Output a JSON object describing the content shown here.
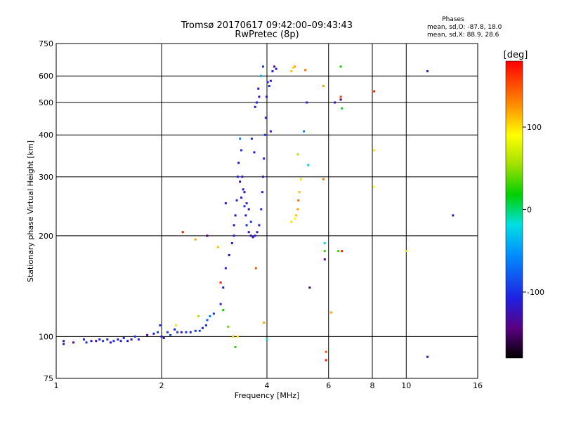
{
  "header": {
    "title_line1": "Tromsø 20170617 09:42:00–09:43:43",
    "title_line2": "RwPretec (8p)",
    "phase_heading": "Phases",
    "phase_o": "mean, sd,O: -87.8, 18.0",
    "phase_x": "mean, sd,X:  88.9, 28.6"
  },
  "chart_data": {
    "type": "scatter",
    "title": "Tromsø 20170617 09:42:00–09:43:43",
    "subtitle": "RwPretec (8p)",
    "xlabel": "Frequency [MHz]",
    "ylabel": "Stationary phase Virtual Height [km]",
    "x_scale": "log2",
    "y_scale": "log",
    "xlim": [
      1,
      16
    ],
    "ylim": [
      75,
      750
    ],
    "x_ticks": [
      1,
      2,
      4,
      6,
      8,
      10,
      16
    ],
    "y_ticks": [
      75,
      100,
      200,
      300,
      400,
      500,
      600,
      750
    ],
    "x_grid": [
      2,
      4,
      6,
      8,
      10
    ],
    "y_grid": [
      100,
      200,
      300,
      400,
      500,
      600
    ],
    "colorbar": {
      "label": "[deg]",
      "range": [
        -180,
        180
      ],
      "ticks": [
        100,
        0,
        -100
      ]
    },
    "points": [
      {
        "x": 1.05,
        "y": 97,
        "c": -110
      },
      {
        "x": 1.05,
        "y": 95,
        "c": -120
      },
      {
        "x": 1.12,
        "y": 96,
        "c": -130
      },
      {
        "x": 1.2,
        "y": 98,
        "c": -110
      },
      {
        "x": 1.22,
        "y": 96,
        "c": -100
      },
      {
        "x": 1.26,
        "y": 97,
        "c": -120
      },
      {
        "x": 1.3,
        "y": 97,
        "c": -130
      },
      {
        "x": 1.33,
        "y": 98,
        "c": -110
      },
      {
        "x": 1.36,
        "y": 97,
        "c": -90
      },
      {
        "x": 1.4,
        "y": 98,
        "c": -110
      },
      {
        "x": 1.43,
        "y": 96,
        "c": -120
      },
      {
        "x": 1.46,
        "y": 97,
        "c": -100
      },
      {
        "x": 1.5,
        "y": 98,
        "c": -110
      },
      {
        "x": 1.53,
        "y": 97,
        "c": -120
      },
      {
        "x": 1.56,
        "y": 99,
        "c": -100
      },
      {
        "x": 1.6,
        "y": 97,
        "c": -110
      },
      {
        "x": 1.64,
        "y": 98,
        "c": -130
      },
      {
        "x": 1.68,
        "y": 100,
        "c": -100
      },
      {
        "x": 1.72,
        "y": 98,
        "c": -110
      },
      {
        "x": 1.82,
        "y": 101,
        "c": -140
      },
      {
        "x": 1.9,
        "y": 102,
        "c": -110
      },
      {
        "x": 1.95,
        "y": 103,
        "c": -90
      },
      {
        "x": 1.98,
        "y": 108,
        "c": -100
      },
      {
        "x": 2.0,
        "y": 100,
        "c": -110
      },
      {
        "x": 2.03,
        "y": 99,
        "c": -120
      },
      {
        "x": 2.08,
        "y": 103,
        "c": -100
      },
      {
        "x": 2.12,
        "y": 101,
        "c": -90
      },
      {
        "x": 2.18,
        "y": 105,
        "c": -110
      },
      {
        "x": 2.22,
        "y": 103,
        "c": -100
      },
      {
        "x": 2.28,
        "y": 103,
        "c": -120
      },
      {
        "x": 2.35,
        "y": 103,
        "c": -100
      },
      {
        "x": 2.42,
        "y": 103,
        "c": -110
      },
      {
        "x": 2.5,
        "y": 104,
        "c": -100
      },
      {
        "x": 2.57,
        "y": 104,
        "c": -90
      },
      {
        "x": 2.62,
        "y": 106,
        "c": -110
      },
      {
        "x": 2.68,
        "y": 108,
        "c": -100
      },
      {
        "x": 2.7,
        "y": 112,
        "c": -80
      },
      {
        "x": 2.75,
        "y": 115,
        "c": -60
      },
      {
        "x": 2.82,
        "y": 117,
        "c": -100
      },
      {
        "x": 2.95,
        "y": 125,
        "c": -110
      },
      {
        "x": 3.0,
        "y": 140,
        "c": -120
      },
      {
        "x": 3.05,
        "y": 160,
        "c": -110
      },
      {
        "x": 3.12,
        "y": 175,
        "c": -120
      },
      {
        "x": 3.18,
        "y": 190,
        "c": -110
      },
      {
        "x": 3.22,
        "y": 215,
        "c": -130
      },
      {
        "x": 3.25,
        "y": 230,
        "c": -120
      },
      {
        "x": 3.28,
        "y": 255,
        "c": -100
      },
      {
        "x": 3.3,
        "y": 300,
        "c": -110
      },
      {
        "x": 3.32,
        "y": 330,
        "c": -120
      },
      {
        "x": 3.35,
        "y": 290,
        "c": -130
      },
      {
        "x": 3.38,
        "y": 260,
        "c": -110
      },
      {
        "x": 3.42,
        "y": 275,
        "c": -120
      },
      {
        "x": 3.45,
        "y": 245,
        "c": -100
      },
      {
        "x": 3.48,
        "y": 230,
        "c": -110
      },
      {
        "x": 3.5,
        "y": 215,
        "c": -100
      },
      {
        "x": 3.55,
        "y": 205,
        "c": -120
      },
      {
        "x": 3.6,
        "y": 200,
        "c": -130
      },
      {
        "x": 3.65,
        "y": 198,
        "c": -120
      },
      {
        "x": 3.7,
        "y": 200,
        "c": -110
      },
      {
        "x": 3.75,
        "y": 205,
        "c": -120
      },
      {
        "x": 3.8,
        "y": 215,
        "c": -110
      },
      {
        "x": 3.85,
        "y": 240,
        "c": -100
      },
      {
        "x": 3.88,
        "y": 270,
        "c": -110
      },
      {
        "x": 3.9,
        "y": 300,
        "c": -120
      },
      {
        "x": 3.92,
        "y": 340,
        "c": -110
      },
      {
        "x": 3.95,
        "y": 400,
        "c": -100
      },
      {
        "x": 3.97,
        "y": 450,
        "c": -110
      },
      {
        "x": 3.99,
        "y": 520,
        "c": -120
      },
      {
        "x": 4.02,
        "y": 575,
        "c": -110
      },
      {
        "x": 4.06,
        "y": 560,
        "c": -100
      },
      {
        "x": 4.1,
        "y": 580,
        "c": -120
      },
      {
        "x": 4.15,
        "y": 620,
        "c": -110
      },
      {
        "x": 4.2,
        "y": 640,
        "c": -130
      },
      {
        "x": 4.25,
        "y": 630,
        "c": -120
      },
      {
        "x": 3.38,
        "y": 360,
        "c": -100
      },
      {
        "x": 3.4,
        "y": 300,
        "c": -120
      },
      {
        "x": 3.45,
        "y": 270,
        "c": -130
      },
      {
        "x": 3.5,
        "y": 250,
        "c": -110
      },
      {
        "x": 3.55,
        "y": 240,
        "c": -120
      },
      {
        "x": 3.6,
        "y": 220,
        "c": -100
      },
      {
        "x": 3.62,
        "y": 390,
        "c": -100
      },
      {
        "x": 3.68,
        "y": 355,
        "c": -110
      },
      {
        "x": 3.7,
        "y": 485,
        "c": -120
      },
      {
        "x": 3.74,
        "y": 500,
        "c": -110
      },
      {
        "x": 3.78,
        "y": 550,
        "c": -120
      },
      {
        "x": 3.8,
        "y": 520,
        "c": -130
      },
      {
        "x": 3.85,
        "y": 600,
        "c": -40
      },
      {
        "x": 3.9,
        "y": 640,
        "c": -100
      },
      {
        "x": 3.05,
        "y": 250,
        "c": -120
      },
      {
        "x": 3.22,
        "y": 200,
        "c": -110
      },
      {
        "x": 3.35,
        "y": 390,
        "c": -60
      },
      {
        "x": 4.1,
        "y": 410,
        "c": -130
      },
      {
        "x": 5.1,
        "y": 410,
        "c": -60
      },
      {
        "x": 4.7,
        "y": 220,
        "c": 100
      },
      {
        "x": 4.8,
        "y": 225,
        "c": 90
      },
      {
        "x": 4.85,
        "y": 230,
        "c": 110
      },
      {
        "x": 4.9,
        "y": 240,
        "c": 120
      },
      {
        "x": 4.92,
        "y": 255,
        "c": 140
      },
      {
        "x": 4.95,
        "y": 270,
        "c": 110
      },
      {
        "x": 5.0,
        "y": 295,
        "c": 100
      },
      {
        "x": 4.7,
        "y": 620,
        "c": 110
      },
      {
        "x": 4.75,
        "y": 635,
        "c": 100
      },
      {
        "x": 4.8,
        "y": 640,
        "c": 120
      },
      {
        "x": 4.9,
        "y": 350,
        "c": 60
      },
      {
        "x": 5.15,
        "y": 625,
        "c": 140
      },
      {
        "x": 5.2,
        "y": 500,
        "c": -110
      },
      {
        "x": 5.25,
        "y": 325,
        "c": -30
      },
      {
        "x": 5.3,
        "y": 140,
        "c": -150
      },
      {
        "x": 5.8,
        "y": 560,
        "c": 120
      },
      {
        "x": 5.8,
        "y": 295,
        "c": 140
      },
      {
        "x": 5.85,
        "y": 190,
        "c": -20
      },
      {
        "x": 5.85,
        "y": 180,
        "c": 30
      },
      {
        "x": 5.85,
        "y": 170,
        "c": -140
      },
      {
        "x": 5.9,
        "y": 90,
        "c": 150
      },
      {
        "x": 5.9,
        "y": 85,
        "c": 170
      },
      {
        "x": 6.1,
        "y": 118,
        "c": 120
      },
      {
        "x": 6.25,
        "y": 500,
        "c": -130
      },
      {
        "x": 6.5,
        "y": 640,
        "c": 20
      },
      {
        "x": 6.5,
        "y": 520,
        "c": 160
      },
      {
        "x": 6.5,
        "y": 510,
        "c": -150
      },
      {
        "x": 6.55,
        "y": 480,
        "c": 10
      },
      {
        "x": 6.4,
        "y": 180,
        "c": 30
      },
      {
        "x": 6.55,
        "y": 180,
        "c": 170
      },
      {
        "x": 8.1,
        "y": 540,
        "c": 170
      },
      {
        "x": 8.1,
        "y": 360,
        "c": 100
      },
      {
        "x": 8.1,
        "y": 280,
        "c": 90
      },
      {
        "x": 10.0,
        "y": 180,
        "c": 100
      },
      {
        "x": 11.5,
        "y": 620,
        "c": -110
      },
      {
        "x": 11.5,
        "y": 87,
        "c": -120
      },
      {
        "x": 13.6,
        "y": 230,
        "c": -120
      },
      {
        "x": 2.55,
        "y": 115,
        "c": 60
      },
      {
        "x": 2.9,
        "y": 185,
        "c": 110
      },
      {
        "x": 3.0,
        "y": 120,
        "c": 20
      },
      {
        "x": 3.1,
        "y": 107,
        "c": 40
      },
      {
        "x": 3.2,
        "y": 100,
        "c": 110
      },
      {
        "x": 3.25,
        "y": 93,
        "c": 30
      },
      {
        "x": 3.3,
        "y": 100,
        "c": 100
      },
      {
        "x": 3.92,
        "y": 110,
        "c": 120
      },
      {
        "x": 4.0,
        "y": 98,
        "c": -20
      },
      {
        "x": 3.72,
        "y": 160,
        "c": 150
      },
      {
        "x": 2.95,
        "y": 145,
        "c": 170
      },
      {
        "x": 2.5,
        "y": 195,
        "c": 120
      },
      {
        "x": 2.3,
        "y": 205,
        "c": 170
      },
      {
        "x": 2.2,
        "y": 108,
        "c": 100
      },
      {
        "x": 2.7,
        "y": 200,
        "c": -150
      }
    ]
  }
}
